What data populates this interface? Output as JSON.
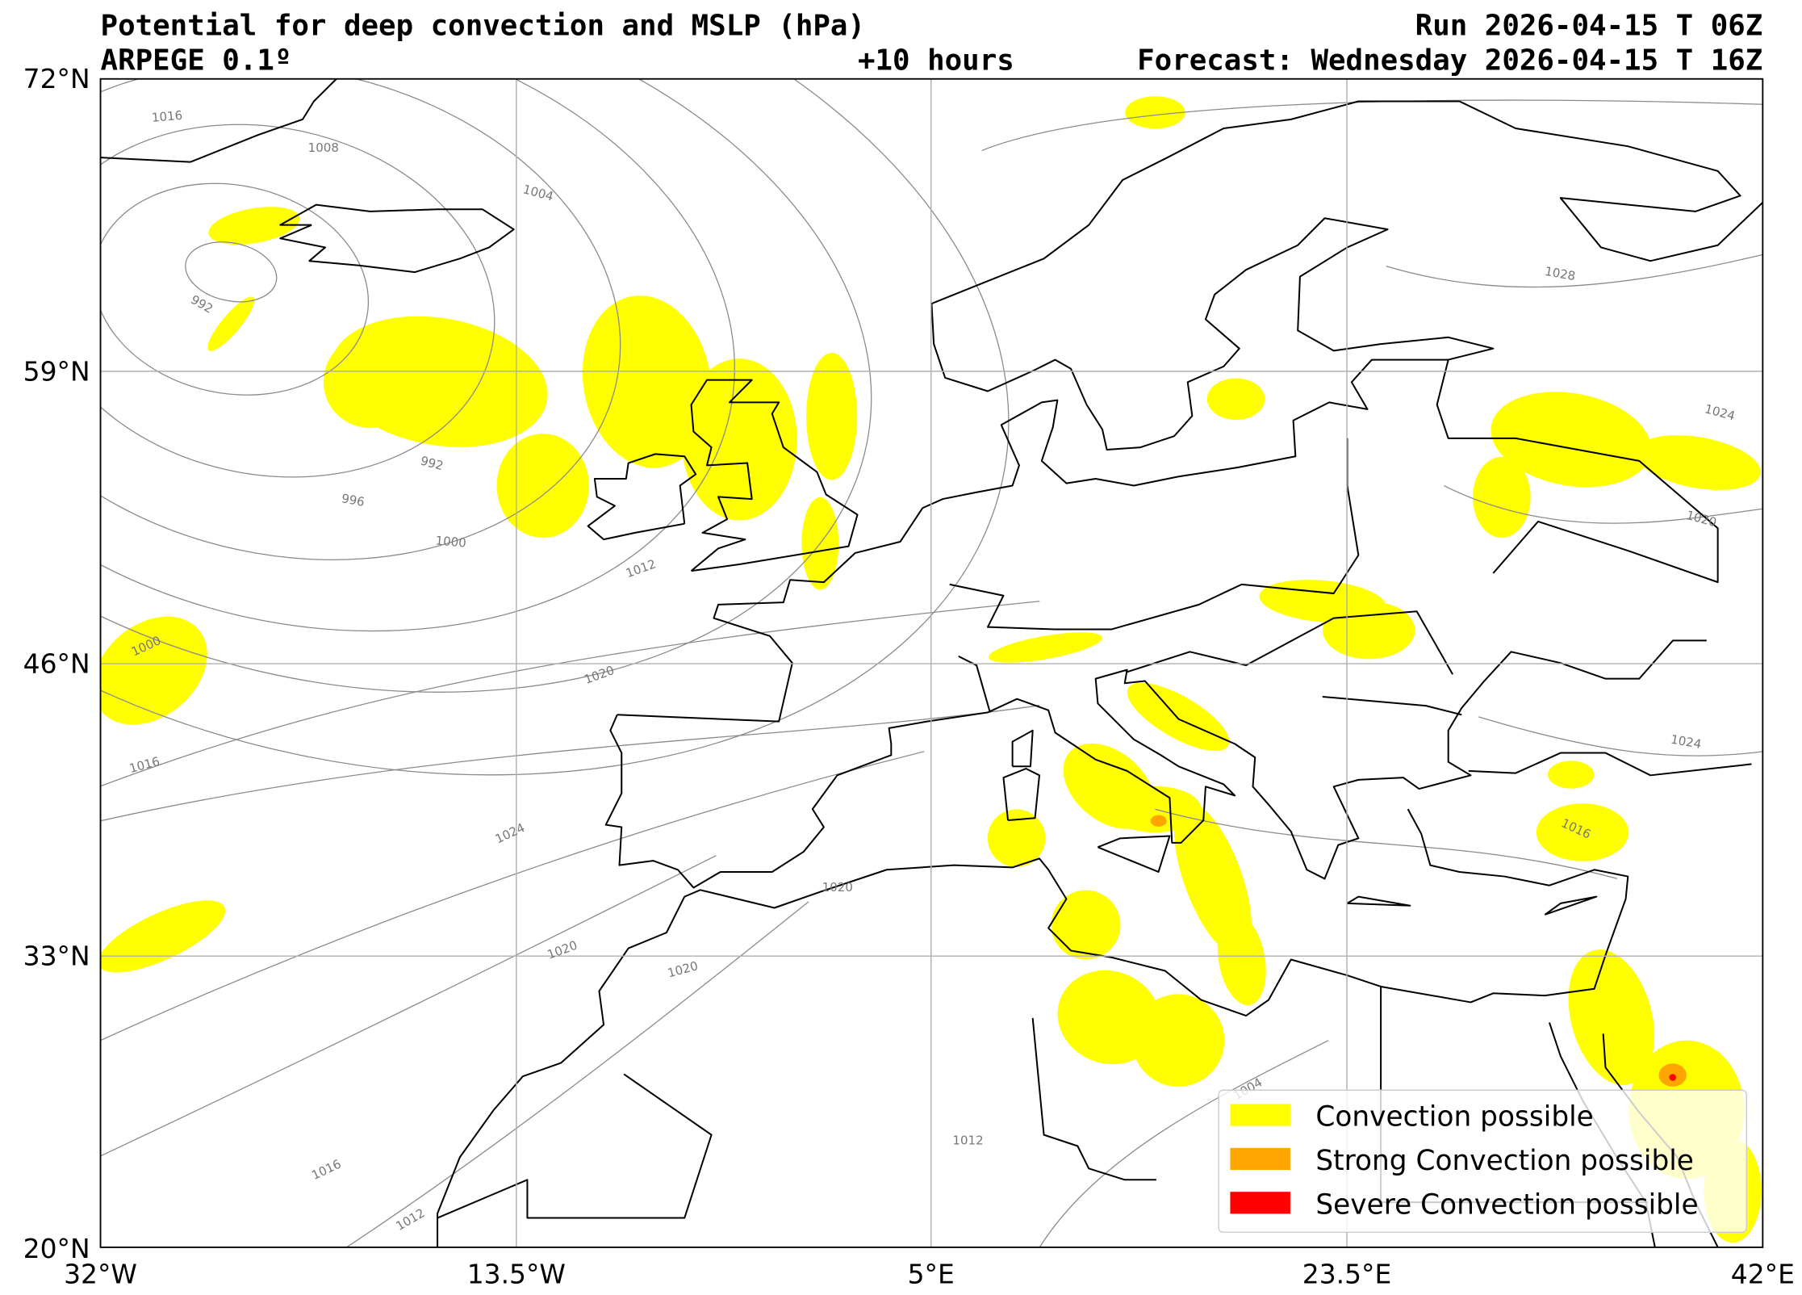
{
  "header": {
    "title": "Potential for deep convection and MSLP (hPa)",
    "model": "ARPEGE 0.1º",
    "lead_time": "+10 hours",
    "run": "Run 2026-04-15 T 06Z",
    "forecast": "Forecast: Wednesday 2026-04-15 T 16Z"
  },
  "axes": {
    "lat_labels": [
      "72°N",
      "59°N",
      "46°N",
      "33°N",
      "20°N"
    ],
    "lon_labels": [
      "32°W",
      "13.5°W",
      "5°E",
      "23.5°E",
      "42°E"
    ]
  },
  "isobar_labels": [
    "1016",
    "1008",
    "1004",
    "992",
    "992",
    "996",
    "1000",
    "1012",
    "1000",
    "1020",
    "1016",
    "1024",
    "1020",
    "1020",
    "1020",
    "1016",
    "1012",
    "1012",
    "1028",
    "1024",
    "1020",
    "1024",
    "1016",
    "1004"
  ],
  "legend": {
    "items": [
      {
        "label": "Convection possible",
        "color": "#ffff00"
      },
      {
        "label": "Strong Convection possible",
        "color": "#ffa500"
      },
      {
        "label": "Severe Convection possible",
        "color": "#ff0000"
      }
    ]
  }
}
